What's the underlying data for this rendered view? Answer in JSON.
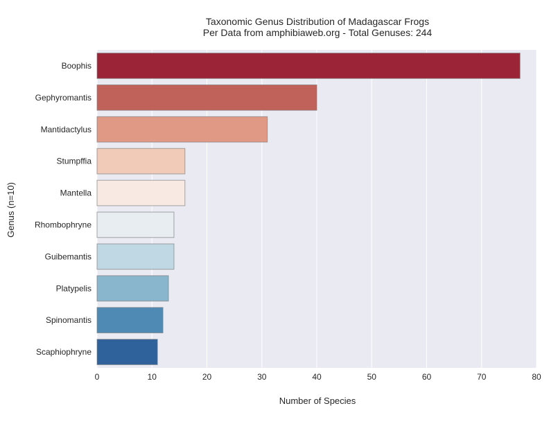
{
  "chart_data": {
    "type": "bar",
    "orientation": "horizontal",
    "title": "Taxonomic Genus Distribution of Madagascar Frogs",
    "subtitle": "Per Data from amphibiaweb.org - Total Genuses: 244",
    "xlabel": "Number of Species",
    "ylabel": "Genus (n=10)",
    "xlim": [
      0,
      80
    ],
    "xticks": [
      0,
      10,
      20,
      30,
      40,
      50,
      60,
      70,
      80
    ],
    "grid": true,
    "categories": [
      "Boophis",
      "Gephyromantis",
      "Mantidactylus",
      "Stumpffia",
      "Mantella",
      "Rhombophryne",
      "Guibemantis",
      "Platypelis",
      "Spinomantis",
      "Scaphiophryne"
    ],
    "values": [
      77,
      40,
      31,
      16,
      16,
      14,
      14,
      13,
      12,
      11
    ],
    "colors": [
      "#9b2537",
      "#c1625a",
      "#df9985",
      "#f2cab8",
      "#f8e9e3",
      "#e7edf1",
      "#c0d8e4",
      "#89b5cd",
      "#4f8ab5",
      "#2f619a"
    ],
    "background": "#eaeaf2"
  }
}
